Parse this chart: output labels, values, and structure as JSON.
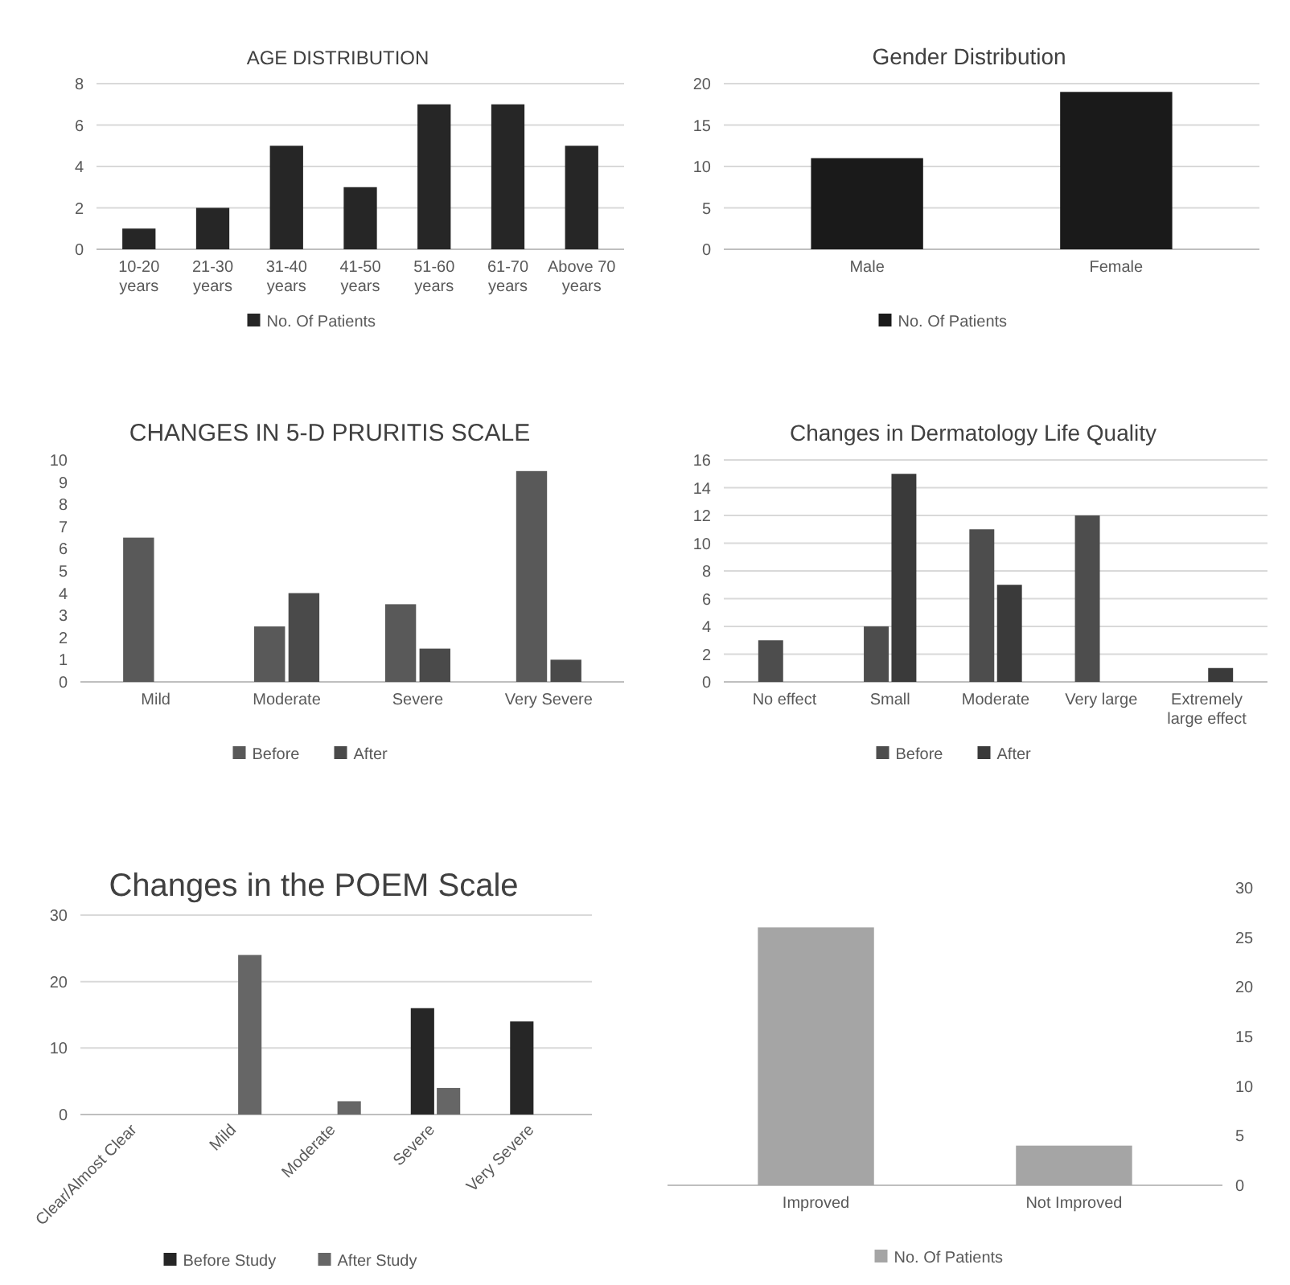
{
  "chart_data": [
    {
      "type": "bar",
      "title": "AGE DISTRIBUTION",
      "categories": [
        "10-20 years",
        "21-30 years",
        "31-40 years",
        "41-50 years",
        "51-60 years",
        "61-70 years",
        "Above 70 years"
      ],
      "series": [
        {
          "name": "No. Of Patients",
          "color": "#262626",
          "values": [
            1,
            2,
            5,
            3,
            7,
            7,
            5
          ]
        }
      ],
      "ylim": [
        0,
        8
      ],
      "yticks": [
        0,
        2,
        4,
        6,
        8
      ],
      "grid": "y",
      "legend": "bottom"
    },
    {
      "type": "bar",
      "title": "Gender Distribution",
      "categories": [
        "Male",
        "Female"
      ],
      "series": [
        {
          "name": "No. Of Patients",
          "color": "#1a1a1a",
          "values": [
            11,
            19
          ]
        }
      ],
      "ylim": [
        0,
        20
      ],
      "yticks": [
        0,
        5,
        10,
        15,
        20
      ],
      "grid": "y",
      "legend": "bottom"
    },
    {
      "type": "bar",
      "title": "CHANGES IN 5-D PRURITIS SCALE",
      "categories": [
        "Mild",
        "Moderate",
        "Severe",
        "Very Severe"
      ],
      "series": [
        {
          "name": "Before",
          "color": "#595959",
          "values": [
            6.5,
            2.5,
            3.5,
            9.5
          ]
        },
        {
          "name": "After",
          "color": "#4a4a4a",
          "values": [
            null,
            4,
            1.5,
            1
          ]
        }
      ],
      "ylim": [
        0,
        10
      ],
      "yticks": [
        0,
        1,
        2,
        3,
        4,
        5,
        6,
        7,
        8,
        9,
        10
      ],
      "grid": false,
      "legend": "bottom"
    },
    {
      "type": "bar",
      "title": "Changes in Dermatology Life Quality",
      "categories": [
        "No effect",
        "Small",
        "Moderate",
        "Very large",
        "Extremely large effect"
      ],
      "series": [
        {
          "name": "Before",
          "color": "#4d4d4d",
          "values": [
            3,
            4,
            11,
            12,
            null
          ]
        },
        {
          "name": "After",
          "color": "#3a3a3a",
          "values": [
            null,
            15,
            7,
            null,
            1
          ]
        }
      ],
      "ylim": [
        0,
        16
      ],
      "yticks": [
        0,
        2,
        4,
        6,
        8,
        10,
        12,
        14,
        16
      ],
      "grid": "y",
      "legend": "bottom"
    },
    {
      "type": "bar",
      "title": "Changes in the POEM Scale",
      "categories": [
        "Clear/Almost Clear",
        "Mild",
        "Moderate",
        "Severe",
        "Very Severe"
      ],
      "series": [
        {
          "name": "Before Study",
          "color": "#262626",
          "values": [
            null,
            null,
            null,
            16,
            14
          ]
        },
        {
          "name": "After Study",
          "color": "#666666",
          "values": [
            null,
            24,
            2,
            4,
            null
          ]
        }
      ],
      "ylim": [
        0,
        30
      ],
      "yticks": [
        0,
        10,
        20,
        30
      ],
      "grid": "y",
      "legend": "bottom"
    },
    {
      "type": "bar",
      "categories": [
        "Improved",
        "Not Improved"
      ],
      "series": [
        {
          "name": "No. Of Patients",
          "color": "#a5a5a5",
          "values": [
            26,
            4
          ]
        }
      ],
      "ylim": [
        0,
        30
      ],
      "yticks": [
        0,
        5,
        10,
        15,
        20,
        25,
        30
      ],
      "grid": false,
      "legend": "bottom"
    }
  ]
}
